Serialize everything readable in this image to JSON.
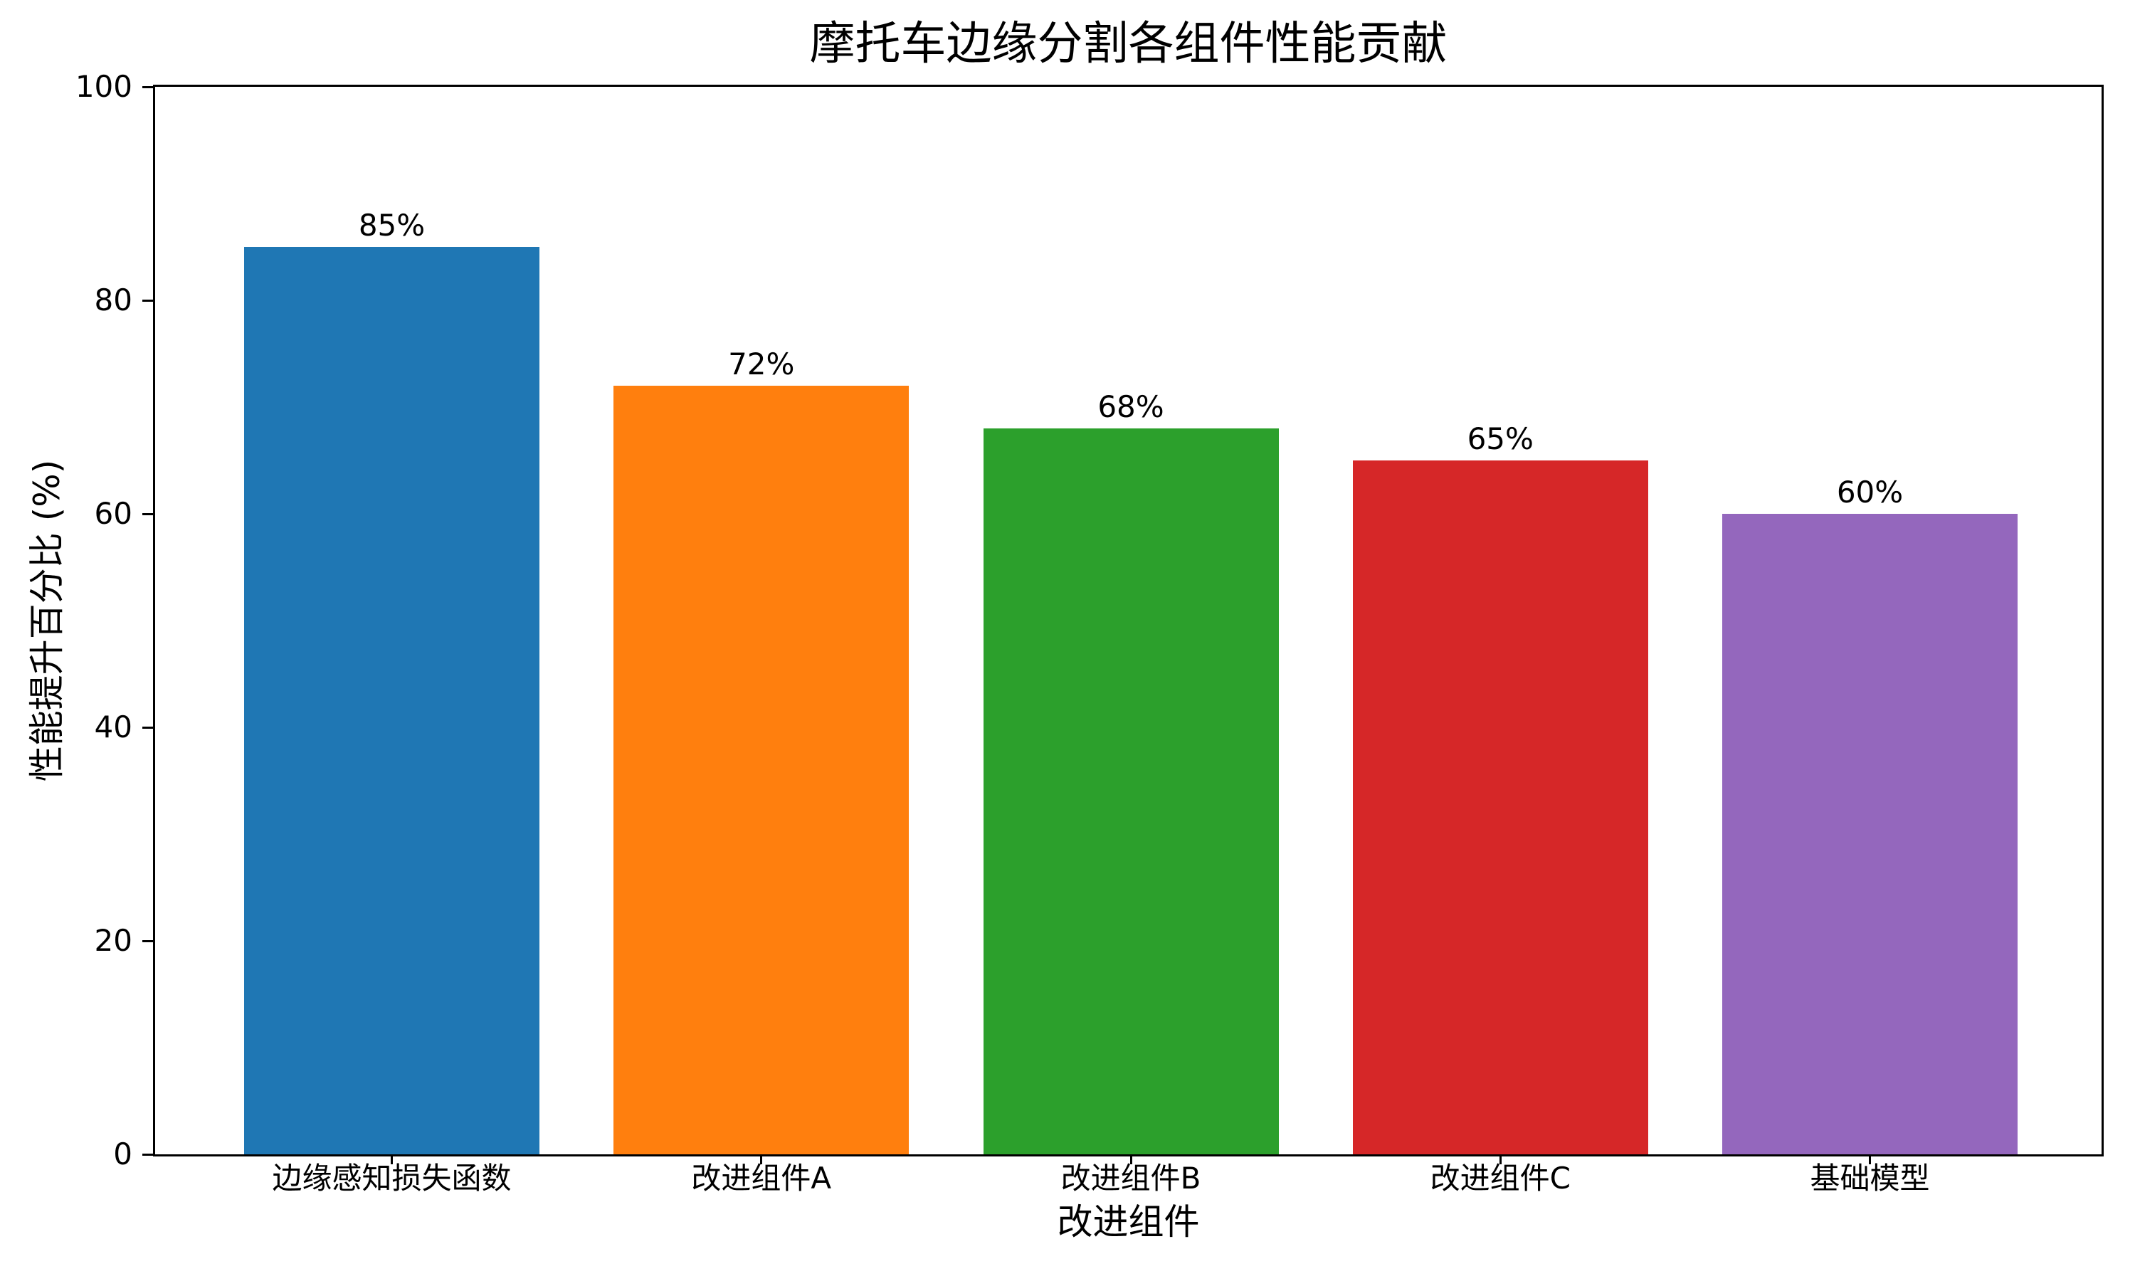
{
  "chart_data": {
    "type": "bar",
    "title": "摩托车边缘分割各组件性能贡献",
    "xlabel": "改进组件",
    "ylabel": "性能提升百分比 (%)",
    "categories": [
      "边缘感知损失函数",
      "改进组件A",
      "改进组件B",
      "改进组件C",
      "基础模型"
    ],
    "values": [
      85,
      72,
      68,
      65,
      60
    ],
    "value_labels": [
      "85%",
      "72%",
      "68%",
      "65%",
      "60%"
    ],
    "bar_colors": [
      "#1f77b4",
      "#ff7f0e",
      "#2ca02c",
      "#d62728",
      "#9467bd"
    ],
    "ylim": [
      0,
      100
    ],
    "yticks": [
      0,
      20,
      40,
      60,
      80,
      100
    ],
    "grid": false,
    "legend": null
  },
  "colors": {
    "background": "#ffffff",
    "text": "#000000",
    "spine": "#000000"
  }
}
